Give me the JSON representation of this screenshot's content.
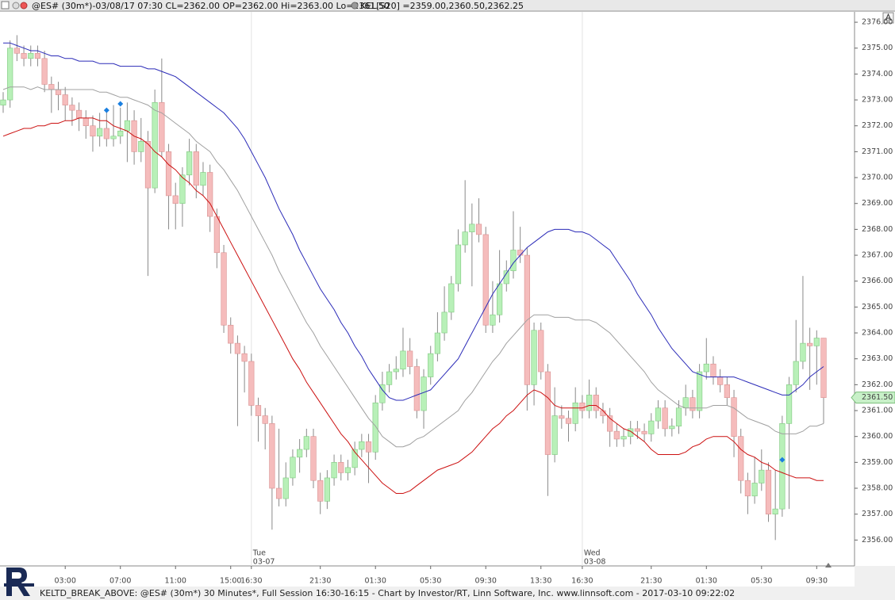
{
  "chart_data": {
    "type": "candlestick",
    "header_text": "@ES# (30m*)-03/08/17 07:30 CL=2362.00 OP=2362.00 Hi=2363.00 Lo=2361.50",
    "indicator_text": "KEL[S20] =2359.00,2360.50,2362.25",
    "footer": "KELTD_BREAK_ABOVE: @ES# (30m*) 30 Minutes*, Full Session 16:30-16:15 - Chart by Investor/RT, Linn Software, Inc. www.linnsoft.com - 2017-03-10 09:22:02",
    "categories": [
      null,
      null,
      null,
      null,
      null,
      null,
      null,
      null,
      null,
      "03:00",
      null,
      null,
      null,
      null,
      null,
      null,
      null,
      "07:00",
      null,
      null,
      null,
      null,
      null,
      null,
      null,
      "11:00",
      null,
      null,
      null,
      null,
      null,
      null,
      null,
      "15:00",
      null,
      null,
      "16:30",
      null,
      null,
      null,
      null,
      null,
      null,
      null,
      null,
      null,
      "21:30",
      null,
      null,
      null,
      null,
      null,
      null,
      null,
      "01:30",
      null,
      null,
      null,
      null,
      null,
      null,
      null,
      "05:30",
      null,
      null,
      null,
      null,
      null,
      null,
      null,
      "09:30",
      null,
      null,
      null,
      null,
      null,
      null,
      null,
      "13:30",
      null,
      null,
      null,
      null,
      null,
      "16:30",
      null,
      null,
      null,
      null,
      null,
      null,
      null,
      null,
      null,
      "21:30",
      null,
      null,
      null,
      null,
      null,
      null,
      null,
      "01:30",
      null,
      null,
      null,
      null,
      null,
      null,
      null,
      "05:30",
      null,
      null,
      null,
      null,
      null,
      null,
      null,
      "09:30",
      null
    ],
    "day_markers": [
      {
        "index": 36,
        "day": "Tue",
        "date": "03-07"
      },
      {
        "index": 84,
        "day": "Wed",
        "date": "03-08"
      }
    ],
    "open": [
      2372.8,
      2373.0,
      2375.0,
      2374.8,
      2374.6,
      2374.8,
      2374.6,
      2373.6,
      2373.4,
      2373.2,
      2372.8,
      2372.6,
      2372.3,
      2372.0,
      2371.6,
      2371.9,
      2371.5,
      2371.6,
      2371.8,
      2372.2,
      2371.0,
      2371.4,
      2369.6,
      2372.9,
      2371.0,
      2369.3,
      2369.0,
      2370.1,
      2371.0,
      2369.7,
      2370.2,
      2368.5,
      2367.1,
      2364.3,
      2363.6,
      2363.2,
      2362.9,
      2361.2,
      2360.8,
      2360.5,
      2358.0,
      2357.6,
      2358.4,
      2359.2,
      2359.5,
      2360.0,
      2358.3,
      2357.5,
      2358.4,
      2359.0,
      2358.6,
      2358.8,
      2359.5,
      2359.8,
      2359.4,
      2361.3,
      2362.0,
      2362.5,
      2362.6,
      2363.3,
      2362.7,
      2361.0,
      2362.3,
      2363.2,
      2364.0,
      2364.8,
      2365.9,
      2367.4,
      2367.9,
      2368.2,
      2367.8,
      2364.3,
      2364.7,
      2365.9,
      2366.4,
      2367.2,
      2367.0,
      2362.0,
      2364.1,
      2362.5,
      2359.3,
      2360.8,
      2360.7,
      2360.5,
      2361.3,
      2361.0,
      2361.6,
      2361.0,
      2360.8,
      2360.2,
      2359.9,
      2360.0,
      2360.3,
      2360.2,
      2360.1,
      2360.6,
      2361.1,
      2360.3,
      2360.4,
      2361.1,
      2361.5,
      2361.0,
      2362.5,
      2362.8,
      2362.3,
      2362.0,
      2361.5,
      2360.0,
      2358.3,
      2357.7,
      2358.2,
      2358.7,
      2357.0,
      2357.2,
      2360.5,
      2362.0,
      2362.9,
      2363.6,
      2363.5,
      2363.8
    ],
    "high": [
      2373.3,
      2375.3,
      2375.5,
      2375.1,
      2375.1,
      2375.1,
      2374.9,
      2373.9,
      2373.7,
      2373.5,
      2373.1,
      2372.9,
      2372.6,
      2372.4,
      2372.5,
      2372.6,
      2372.8,
      2372.7,
      2372.9,
      2372.6,
      2372.3,
      2371.8,
      2373.4,
      2374.6,
      2371.3,
      2369.8,
      2370.4,
      2371.5,
      2371.3,
      2370.6,
      2370.5,
      2368.8,
      2367.4,
      2364.6,
      2363.9,
      2363.5,
      2363.2,
      2361.5,
      2361.1,
      2360.8,
      2360.3,
      2359.0,
      2359.5,
      2359.9,
      2360.3,
      2360.3,
      2358.6,
      2358.7,
      2359.3,
      2359.3,
      2359.1,
      2359.8,
      2360.1,
      2360.1,
      2361.6,
      2362.5,
      2362.8,
      2363.1,
      2364.2,
      2363.8,
      2363.0,
      2362.6,
      2363.5,
      2364.8,
      2365.8,
      2366.2,
      2368.0,
      2369.9,
      2369.0,
      2369.2,
      2368.1,
      2366.0,
      2367.2,
      2366.8,
      2368.7,
      2368.1,
      2367.3,
      2364.4,
      2364.4,
      2362.8,
      2361.9,
      2361.2,
      2361.0,
      2361.9,
      2361.6,
      2362.2,
      2361.9,
      2361.3,
      2361.1,
      2360.5,
      2360.3,
      2360.6,
      2360.6,
      2360.5,
      2360.9,
      2361.4,
      2361.4,
      2360.7,
      2361.4,
      2362.0,
      2361.8,
      2362.8,
      2363.8,
      2363.1,
      2362.6,
      2362.3,
      2361.8,
      2360.3,
      2358.6,
      2359.2,
      2359.5,
      2359.0,
      2358.7,
      2360.8,
      2362.3,
      2364.5,
      2366.2,
      2364.2,
      2364.1,
      2363.8
    ],
    "low": [
      2372.5,
      2372.7,
      2374.5,
      2374.3,
      2374.3,
      2374.3,
      2373.3,
      2372.5,
      2372.6,
      2372.2,
      2372.0,
      2371.8,
      2371.5,
      2371.0,
      2371.2,
      2371.2,
      2371.2,
      2371.3,
      2370.6,
      2370.5,
      2370.6,
      2366.2,
      2369.4,
      2370.8,
      2368.0,
      2368.0,
      2368.1,
      2369.7,
      2369.2,
      2369.3,
      2367.9,
      2366.5,
      2364.0,
      2363.2,
      2360.4,
      2361.7,
      2360.8,
      2359.8,
      2359.5,
      2356.4,
      2357.3,
      2357.3,
      2358.1,
      2358.6,
      2359.2,
      2358.0,
      2357.0,
      2357.2,
      2358.1,
      2358.3,
      2358.3,
      2358.5,
      2359.2,
      2358.2,
      2359.1,
      2361.0,
      2361.7,
      2362.2,
      2362.3,
      2362.4,
      2360.7,
      2360.3,
      2362.0,
      2362.9,
      2363.7,
      2364.5,
      2365.6,
      2367.1,
      2365.8,
      2367.5,
      2364.0,
      2364.0,
      2364.4,
      2365.6,
      2366.1,
      2366.7,
      2361.0,
      2361.2,
      2362.2,
      2357.7,
      2359.0,
      2360.3,
      2359.8,
      2360.2,
      2360.7,
      2360.7,
      2360.7,
      2360.5,
      2359.6,
      2359.6,
      2359.6,
      2359.7,
      2359.9,
      2359.8,
      2359.8,
      2360.3,
      2360.0,
      2360.0,
      2360.1,
      2360.8,
      2360.7,
      2360.7,
      2362.2,
      2362.0,
      2361.7,
      2361.2,
      2359.2,
      2357.8,
      2357.0,
      2357.4,
      2357.9,
      2356.7,
      2356.0,
      2356.9,
      2357.2,
      2361.7,
      2362.6,
      2361.8,
      2362.0,
      2360.5
    ],
    "close": [
      2373.0,
      2375.0,
      2374.8,
      2374.6,
      2374.8,
      2374.6,
      2373.6,
      2373.4,
      2373.2,
      2372.8,
      2372.6,
      2372.3,
      2372.0,
      2371.6,
      2371.9,
      2371.5,
      2371.6,
      2371.8,
      2372.2,
      2371.0,
      2371.4,
      2369.6,
      2372.9,
      2371.0,
      2369.3,
      2369.0,
      2370.1,
      2371.0,
      2369.7,
      2370.2,
      2368.5,
      2367.1,
      2364.3,
      2363.6,
      2363.2,
      2362.9,
      2361.2,
      2360.8,
      2360.5,
      2358.0,
      2357.6,
      2358.4,
      2359.2,
      2359.5,
      2360.0,
      2358.3,
      2357.5,
      2358.4,
      2359.0,
      2358.6,
      2358.8,
      2359.5,
      2359.8,
      2359.4,
      2361.3,
      2362.0,
      2362.5,
      2362.6,
      2363.3,
      2362.7,
      2361.0,
      2362.3,
      2363.2,
      2364.0,
      2364.8,
      2365.9,
      2367.4,
      2367.9,
      2368.2,
      2367.8,
      2364.3,
      2364.7,
      2365.9,
      2366.4,
      2367.2,
      2367.0,
      2362.0,
      2364.1,
      2362.5,
      2359.3,
      2360.8,
      2360.7,
      2360.5,
      2361.3,
      2361.0,
      2361.6,
      2361.0,
      2360.8,
      2360.2,
      2359.9,
      2360.0,
      2360.3,
      2360.2,
      2360.1,
      2360.6,
      2361.1,
      2360.3,
      2360.4,
      2361.1,
      2361.5,
      2361.0,
      2362.5,
      2362.8,
      2362.3,
      2362.0,
      2361.5,
      2360.0,
      2358.3,
      2357.7,
      2358.2,
      2358.7,
      2357.0,
      2357.2,
      2360.5,
      2362.0,
      2362.9,
      2363.6,
      2363.5,
      2363.8,
      2361.5
    ],
    "up_color": "#b8f0b8",
    "down_color": "#f5bcbc",
    "keltner_upper": {
      "color": "#2b2bb8",
      "values": [
        2375.2,
        2375.2,
        2375.1,
        2375.0,
        2374.9,
        2374.9,
        2374.8,
        2374.7,
        2374.7,
        2374.6,
        2374.6,
        2374.5,
        2374.5,
        2374.5,
        2374.4,
        2374.4,
        2374.4,
        2374.3,
        2374.3,
        2374.3,
        2374.3,
        2374.2,
        2374.2,
        2374.1,
        2374.0,
        2373.9,
        2373.7,
        2373.5,
        2373.3,
        2373.1,
        2372.9,
        2372.7,
        2372.5,
        2372.2,
        2371.9,
        2371.5,
        2371.0,
        2370.5,
        2370.0,
        2369.4,
        2368.8,
        2368.3,
        2367.8,
        2367.2,
        2366.7,
        2366.2,
        2365.7,
        2365.3,
        2364.9,
        2364.4,
        2364.0,
        2363.5,
        2363.1,
        2362.6,
        2362.2,
        2361.8,
        2361.5,
        2361.4,
        2361.4,
        2361.5,
        2361.6,
        2361.7,
        2361.8,
        2362.1,
        2362.4,
        2362.7,
        2363.0,
        2363.5,
        2364.0,
        2364.5,
        2365.0,
        2365.5,
        2365.9,
        2366.3,
        2366.7,
        2367.0,
        2367.3,
        2367.5,
        2367.7,
        2367.9,
        2368.0,
        2368.0,
        2368.0,
        2367.9,
        2367.9,
        2367.8,
        2367.6,
        2367.4,
        2367.2,
        2366.8,
        2366.4,
        2366.0,
        2365.5,
        2365.1,
        2364.7,
        2364.2,
        2363.8,
        2363.4,
        2363.1,
        2362.8,
        2362.5,
        2362.4,
        2362.3,
        2362.3,
        2362.3,
        2362.3,
        2362.3,
        2362.2,
        2362.1,
        2362.0,
        2361.9,
        2361.8,
        2361.7,
        2361.6,
        2361.6,
        2361.8,
        2362.0,
        2362.3,
        2362.5,
        2362.7
      ]
    },
    "keltner_middle": {
      "color": "#a0a0a0",
      "values": [
        2373.4,
        2373.5,
        2373.5,
        2373.5,
        2373.4,
        2373.5,
        2373.4,
        2373.4,
        2373.4,
        2373.4,
        2373.4,
        2373.4,
        2373.4,
        2373.4,
        2373.3,
        2373.3,
        2373.2,
        2373.1,
        2373.1,
        2373.0,
        2372.9,
        2372.8,
        2372.6,
        2372.5,
        2372.3,
        2372.1,
        2371.9,
        2371.7,
        2371.4,
        2371.2,
        2371.0,
        2370.6,
        2370.3,
        2369.9,
        2369.5,
        2369.0,
        2368.5,
        2368.0,
        2367.5,
        2367.0,
        2366.4,
        2365.9,
        2365.4,
        2364.9,
        2364.4,
        2364.0,
        2363.5,
        2363.1,
        2362.7,
        2362.3,
        2361.9,
        2361.5,
        2361.1,
        2360.7,
        2360.4,
        2360.0,
        2359.8,
        2359.6,
        2359.6,
        2359.7,
        2359.9,
        2360.0,
        2360.2,
        2360.4,
        2360.6,
        2360.8,
        2361.0,
        2361.4,
        2361.7,
        2362.1,
        2362.5,
        2362.9,
        2363.2,
        2363.6,
        2363.9,
        2364.2,
        2364.5,
        2364.7,
        2364.7,
        2364.7,
        2364.6,
        2364.6,
        2364.6,
        2364.5,
        2364.5,
        2364.5,
        2364.4,
        2364.2,
        2364.0,
        2363.7,
        2363.4,
        2363.1,
        2362.8,
        2362.5,
        2362.1,
        2361.8,
        2361.6,
        2361.4,
        2361.2,
        2361.1,
        2361.1,
        2361.1,
        2361.1,
        2361.2,
        2361.2,
        2361.2,
        2361.1,
        2360.9,
        2360.7,
        2360.6,
        2360.5,
        2360.4,
        2360.2,
        2360.1,
        2360.1,
        2360.1,
        2360.2,
        2360.4,
        2360.4,
        2360.5
      ]
    },
    "keltner_lower": {
      "color": "#cc1111",
      "values": [
        2371.6,
        2371.7,
        2371.8,
        2371.9,
        2371.9,
        2372.0,
        2372.0,
        2372.1,
        2372.1,
        2372.2,
        2372.2,
        2372.3,
        2372.3,
        2372.3,
        2372.2,
        2372.2,
        2372.0,
        2371.9,
        2371.8,
        2371.6,
        2371.5,
        2371.3,
        2371.0,
        2370.8,
        2370.5,
        2370.3,
        2370.0,
        2369.8,
        2369.5,
        2369.3,
        2369.0,
        2368.5,
        2368.0,
        2367.5,
        2367.0,
        2366.5,
        2366.0,
        2365.5,
        2365.0,
        2364.5,
        2364.0,
        2363.5,
        2363.0,
        2362.6,
        2362.1,
        2361.7,
        2361.3,
        2360.9,
        2360.5,
        2360.1,
        2359.8,
        2359.4,
        2359.1,
        2358.8,
        2358.5,
        2358.2,
        2358.0,
        2357.8,
        2357.8,
        2357.9,
        2358.1,
        2358.3,
        2358.5,
        2358.7,
        2358.8,
        2358.9,
        2359.0,
        2359.2,
        2359.4,
        2359.7,
        2360.0,
        2360.3,
        2360.5,
        2360.8,
        2361.0,
        2361.3,
        2361.6,
        2361.8,
        2361.7,
        2361.5,
        2361.2,
        2361.1,
        2361.1,
        2361.1,
        2361.1,
        2361.2,
        2361.2,
        2361.0,
        2360.7,
        2360.5,
        2360.3,
        2360.2,
        2360.0,
        2359.8,
        2359.5,
        2359.3,
        2359.3,
        2359.3,
        2359.3,
        2359.4,
        2359.6,
        2359.7,
        2359.9,
        2360.0,
        2360.0,
        2360.0,
        2359.8,
        2359.5,
        2359.3,
        2359.2,
        2359.0,
        2358.9,
        2358.7,
        2358.6,
        2358.5,
        2358.4,
        2358.4,
        2358.4,
        2358.3,
        2358.3
      ]
    },
    "signals": {
      "color": "#1a7fe0",
      "index": [
        15,
        17,
        113
      ],
      "values": [
        2372.6,
        2372.85,
        2359.1
      ]
    },
    "last_price": {
      "value": 2361.5,
      "label": "2361.50",
      "color": "#c8f0c8"
    },
    "ylim": [
      2355,
      2376.4
    ],
    "yticks": [
      {
        "value": 2356,
        "label": "2356.00"
      },
      {
        "value": 2357,
        "label": "2357.00"
      },
      {
        "value": 2358,
        "label": "2358.00"
      },
      {
        "value": 2359,
        "label": "2359.00"
      },
      {
        "value": 2360,
        "label": "2360.00"
      },
      {
        "value": 2361,
        "label": "2361.00"
      },
      {
        "value": 2362,
        "label": "2362.00"
      },
      {
        "value": 2363,
        "label": "2363.00"
      },
      {
        "value": 2364,
        "label": "2364.00"
      },
      {
        "value": 2365,
        "label": "2365.00"
      },
      {
        "value": 2366,
        "label": "2366.00"
      },
      {
        "value": 2367,
        "label": "2367.00"
      },
      {
        "value": 2368,
        "label": "2368.00"
      },
      {
        "value": 2369,
        "label": "2369.00"
      },
      {
        "value": 2370,
        "label": "2370.00"
      },
      {
        "value": 2371,
        "label": "2371.00"
      },
      {
        "value": 2372,
        "label": "2372.00"
      },
      {
        "value": 2373,
        "label": "2373.00"
      },
      {
        "value": 2374,
        "label": "2374.00"
      },
      {
        "value": 2375,
        "label": "2375.00"
      },
      {
        "value": 2376,
        "label": "2376.00"
      }
    ]
  }
}
